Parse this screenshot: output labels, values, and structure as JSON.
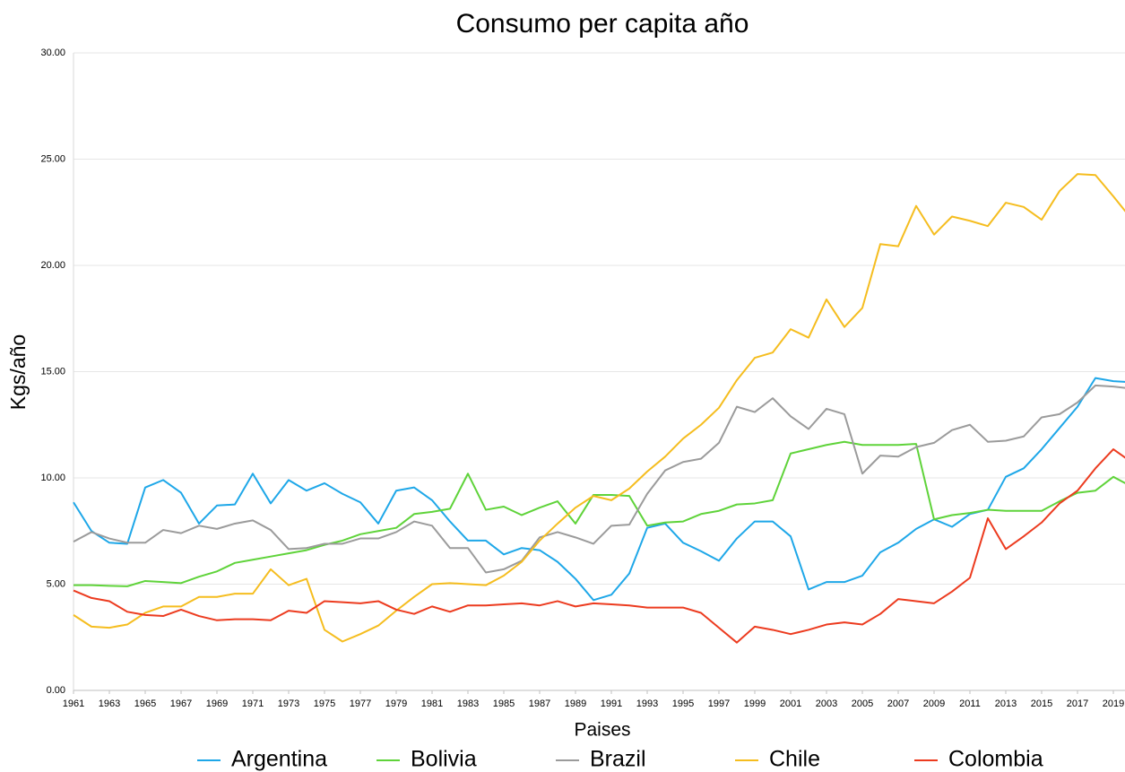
{
  "chart_data": {
    "type": "line",
    "title": "Consumo per capita año",
    "x_label": "Paises",
    "y_label": "Kgs/año",
    "x": [
      1961,
      1962,
      1963,
      1964,
      1965,
      1966,
      1967,
      1968,
      1969,
      1970,
      1971,
      1972,
      1973,
      1974,
      1975,
      1976,
      1977,
      1978,
      1979,
      1980,
      1981,
      1982,
      1983,
      1984,
      1985,
      1986,
      1987,
      1988,
      1989,
      1990,
      1991,
      1992,
      1993,
      1994,
      1995,
      1996,
      1997,
      1998,
      1999,
      2000,
      2001,
      2002,
      2003,
      2004,
      2005,
      2006,
      2007,
      2008,
      2009,
      2010,
      2011,
      2012,
      2013,
      2014,
      2015,
      2016,
      2017,
      2018,
      2019,
      2020
    ],
    "xlim": [
      1961,
      2020
    ],
    "xticks": [
      1961,
      1963,
      1965,
      1967,
      1969,
      1971,
      1973,
      1975,
      1977,
      1979,
      1981,
      1983,
      1985,
      1987,
      1989,
      1991,
      1993,
      1995,
      1997,
      1999,
      2001,
      2003,
      2005,
      2007,
      2009,
      2011,
      2013,
      2015,
      2017,
      2019
    ],
    "ylim": [
      0,
      30
    ],
    "yticks": [
      {
        "value": 0,
        "label": "0.00"
      },
      {
        "value": 5,
        "label": "5.00"
      },
      {
        "value": 10,
        "label": "10.00"
      },
      {
        "value": 15,
        "label": "15.00"
      },
      {
        "value": 20,
        "label": "20.00"
      },
      {
        "value": 25,
        "label": "25.00"
      },
      {
        "value": 30,
        "label": "30.00"
      }
    ],
    "grid": true,
    "legend": "bottom",
    "series": [
      {
        "name": "Argentina",
        "color": "#1ea7e8",
        "values": [
          8.85,
          7.5,
          6.95,
          6.9,
          9.55,
          9.9,
          9.3,
          7.85,
          8.7,
          8.75,
          10.2,
          8.8,
          9.9,
          9.4,
          9.75,
          9.25,
          8.85,
          7.85,
          9.4,
          9.55,
          8.95,
          7.95,
          7.05,
          7.05,
          6.4,
          6.7,
          6.6,
          6.05,
          5.25,
          4.25,
          4.5,
          5.5,
          7.65,
          7.85,
          6.95,
          6.55,
          6.1,
          7.15,
          7.95,
          7.95,
          7.25,
          4.75,
          5.1,
          5.1,
          5.4,
          6.5,
          6.95,
          7.6,
          8.05,
          7.7,
          8.3,
          8.5,
          10.05,
          10.45,
          11.35,
          12.35,
          13.35,
          14.7,
          14.55,
          14.5
        ]
      },
      {
        "name": "Bolivia",
        "color": "#5fd33a",
        "values": [
          4.95,
          4.95,
          4.92,
          4.9,
          5.15,
          5.1,
          5.05,
          5.35,
          5.6,
          6.0,
          6.15,
          6.3,
          6.45,
          6.6,
          6.85,
          7.05,
          7.35,
          7.5,
          7.65,
          8.3,
          8.4,
          8.55,
          10.2,
          8.5,
          8.65,
          8.25,
          8.6,
          8.9,
          7.85,
          9.2,
          9.2,
          9.15,
          7.75,
          7.9,
          7.95,
          8.3,
          8.45,
          8.75,
          8.8,
          8.95,
          11.15,
          11.35,
          11.55,
          11.7,
          11.55,
          11.55,
          11.55,
          11.6,
          8.05,
          8.25,
          8.35,
          8.5,
          8.45,
          8.45,
          8.45,
          8.9,
          9.3,
          9.4,
          10.05,
          9.6
        ]
      },
      {
        "name": "Brazil",
        "color": "#9b9b9b",
        "values": [
          7.0,
          7.45,
          7.15,
          6.95,
          6.95,
          7.55,
          7.4,
          7.75,
          7.6,
          7.85,
          8.0,
          7.55,
          6.65,
          6.7,
          6.9,
          6.9,
          7.15,
          7.15,
          7.45,
          7.95,
          7.75,
          6.7,
          6.7,
          5.55,
          5.7,
          6.1,
          7.2,
          7.45,
          7.2,
          6.9,
          7.75,
          7.8,
          9.25,
          10.35,
          10.75,
          10.9,
          11.65,
          13.35,
          13.1,
          13.75,
          12.9,
          12.3,
          13.25,
          13.0,
          10.2,
          11.05,
          11.0,
          11.45,
          11.65,
          12.25,
          12.5,
          11.7,
          11.75,
          11.95,
          12.85,
          13.0,
          13.55,
          14.35,
          14.3,
          14.2
        ]
      },
      {
        "name": "Chile",
        "color": "#f5bd1f",
        "values": [
          3.55,
          3.0,
          2.95,
          3.1,
          3.65,
          3.95,
          3.95,
          4.4,
          4.4,
          4.55,
          4.55,
          5.7,
          4.95,
          5.25,
          2.85,
          2.3,
          2.65,
          3.05,
          3.75,
          4.4,
          5.0,
          5.05,
          5.0,
          4.95,
          5.4,
          6.05,
          7.05,
          7.85,
          8.6,
          9.15,
          8.95,
          9.5,
          10.3,
          11.0,
          11.85,
          12.5,
          13.3,
          14.6,
          15.65,
          15.9,
          17.0,
          16.6,
          18.4,
          17.1,
          18.0,
          21.0,
          20.9,
          22.8,
          21.45,
          22.3,
          22.1,
          21.85,
          22.95,
          22.75,
          22.15,
          23.5,
          24.3,
          24.25,
          23.25,
          22.2
        ]
      },
      {
        "name": "Colombia",
        "color": "#ec3b1f",
        "values": [
          4.7,
          4.35,
          4.2,
          3.7,
          3.55,
          3.5,
          3.8,
          3.5,
          3.3,
          3.35,
          3.35,
          3.3,
          3.75,
          3.65,
          4.2,
          4.15,
          4.1,
          4.2,
          3.8,
          3.6,
          3.95,
          3.7,
          4.0,
          4.0,
          4.05,
          4.1,
          4.0,
          4.2,
          3.95,
          4.1,
          4.05,
          4.0,
          3.9,
          3.9,
          3.9,
          3.65,
          2.95,
          2.25,
          3.0,
          2.85,
          2.65,
          2.85,
          3.1,
          3.2,
          3.1,
          3.6,
          4.3,
          4.2,
          4.1,
          4.65,
          5.3,
          8.1,
          6.65,
          7.25,
          7.9,
          8.8,
          9.4,
          10.45,
          11.35,
          10.75
        ]
      }
    ]
  }
}
